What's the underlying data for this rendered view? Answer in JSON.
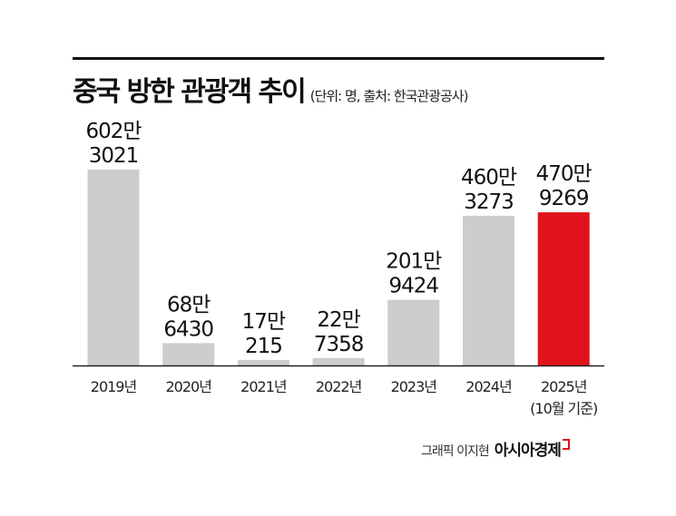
{
  "chart_data": {
    "type": "bar",
    "title": "중국 방한 관광객 추이",
    "subtitle": "(단위: 명, 출처: 한국관광공사)",
    "categories": [
      "2019년",
      "2020년",
      "2021년",
      "2022년",
      "2023년",
      "2024년",
      "2025년"
    ],
    "category_notes": [
      "",
      "",
      "",
      "",
      "",
      "",
      "(10월 기준)"
    ],
    "values": [
      6023021,
      686430,
      170215,
      227358,
      2019424,
      4603273,
      4709269
    ],
    "value_labels": [
      [
        "602만",
        "3021"
      ],
      [
        "68만",
        "6430"
      ],
      [
        "17만",
        "215"
      ],
      [
        "22만",
        "7358"
      ],
      [
        "201만",
        "9424"
      ],
      [
        "460만",
        "3273"
      ],
      [
        "470만",
        "9269"
      ]
    ],
    "ylim": [
      0,
      6023021
    ],
    "xlabel": "",
    "ylabel": "",
    "grid": false,
    "colors": {
      "default": "#cdcdcd",
      "highlight": "#e0131c"
    },
    "highlight_index": 6
  },
  "credit": {
    "text": "그래픽 이지현",
    "brand": "아시아경제"
  }
}
